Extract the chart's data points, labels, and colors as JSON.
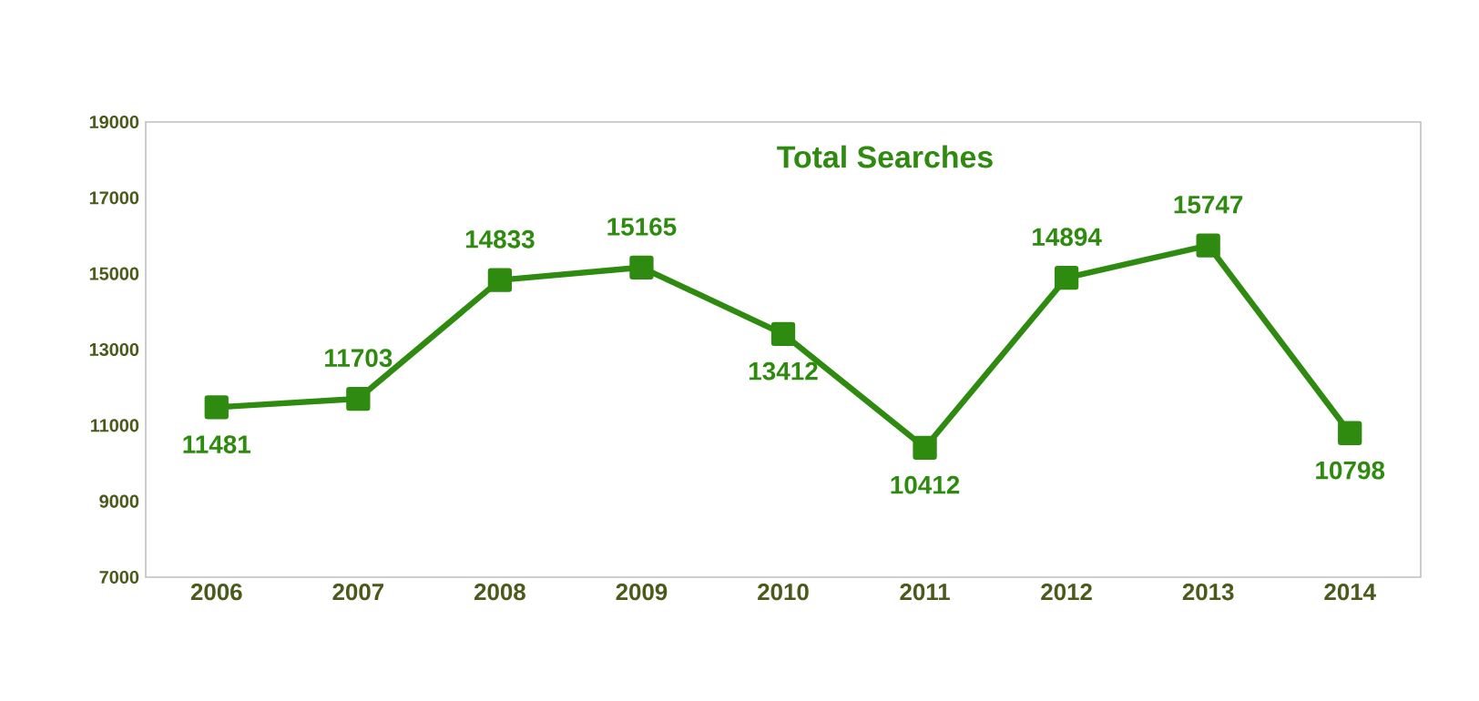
{
  "chart_data": {
    "type": "line",
    "title": "Total Searches",
    "categories": [
      "2006",
      "2007",
      "2008",
      "2009",
      "2010",
      "2011",
      "2012",
      "2013",
      "2014"
    ],
    "values": [
      11481,
      11703,
      14833,
      15165,
      13412,
      10412,
      14894,
      15747,
      10798
    ],
    "color": "#2e8b10",
    "ylim": [
      7000,
      19000
    ],
    "yticks": [
      7000,
      9000,
      11000,
      13000,
      15000,
      17000,
      19000
    ],
    "grid": false,
    "marker": "square",
    "data_labels": true
  }
}
